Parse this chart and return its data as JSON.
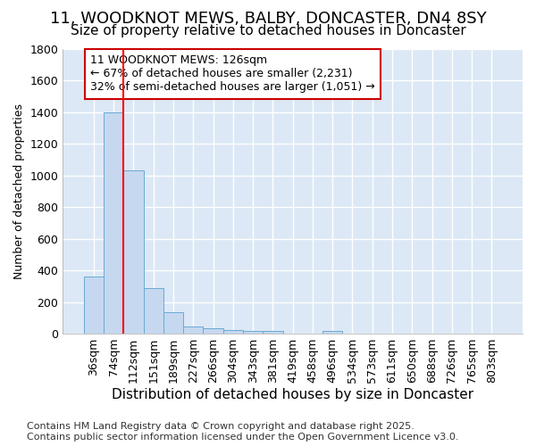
{
  "title_line1": "11, WOODKNOT MEWS, BALBY, DONCASTER, DN4 8SY",
  "title_line2": "Size of property relative to detached houses in Doncaster",
  "xlabel": "Distribution of detached houses by size in Doncaster",
  "ylabel": "Number of detached properties",
  "categories": [
    "36sqm",
    "74sqm",
    "112sqm",
    "151sqm",
    "189sqm",
    "227sqm",
    "266sqm",
    "304sqm",
    "343sqm",
    "381sqm",
    "419sqm",
    "458sqm",
    "496sqm",
    "534sqm",
    "573sqm",
    "611sqm",
    "650sqm",
    "688sqm",
    "726sqm",
    "765sqm",
    "803sqm"
  ],
  "values": [
    360,
    1400,
    1030,
    290,
    135,
    43,
    35,
    25,
    15,
    15,
    0,
    0,
    18,
    0,
    0,
    0,
    0,
    0,
    0,
    0,
    0
  ],
  "bar_color": "#c5d8f0",
  "bar_edge_color": "#6aaad4",
  "vline_x": 2.0,
  "vline_color": "#ff0000",
  "annotation_text": "11 WOODKNOT MEWS: 126sqm\n← 67% of detached houses are smaller (2,231)\n32% of semi-detached houses are larger (1,051) →",
  "annotation_box_color": "#cc0000",
  "ylim": [
    0,
    1800
  ],
  "yticks": [
    0,
    200,
    400,
    600,
    800,
    1000,
    1200,
    1400,
    1600,
    1800
  ],
  "plot_bg_color": "#dce8f5",
  "figure_bg_color": "#ffffff",
  "grid_color": "#ffffff",
  "footer": "Contains HM Land Registry data © Crown copyright and database right 2025.\nContains public sector information licensed under the Open Government Licence v3.0.",
  "title_fontsize": 13,
  "subtitle_fontsize": 11,
  "xlabel_fontsize": 11,
  "ylabel_fontsize": 9,
  "tick_fontsize": 9,
  "annotation_fontsize": 9,
  "footer_fontsize": 8
}
